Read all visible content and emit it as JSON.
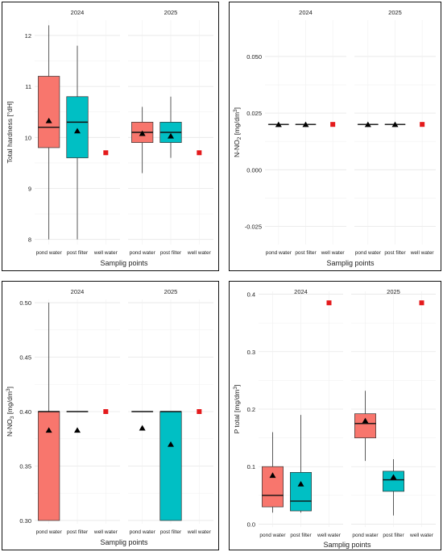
{
  "colors": {
    "pond": "#F8766D",
    "post": "#00BFC4",
    "well": "#E41A1C",
    "grid": "#ebebeb"
  },
  "chart_data": [
    {
      "type": "box",
      "panel": "top-left",
      "ylabel": "Total hardness [°dH]",
      "xlabel": "Samplig points",
      "ylim": [
        7.9,
        12.3
      ],
      "yticks": [
        8,
        9,
        10,
        11,
        12
      ],
      "facets": [
        {
          "label": "2024",
          "groups": [
            {
              "name": "pond water",
              "color": "pond",
              "type": "box",
              "min": 8.0,
              "q1": 9.8,
              "median": 10.2,
              "q3": 11.2,
              "max": 12.2,
              "mean": 10.33
            },
            {
              "name": "post filter",
              "color": "post",
              "type": "box",
              "min": 8.0,
              "q1": 9.6,
              "median": 10.3,
              "q3": 10.8,
              "max": 11.8,
              "mean": 10.13
            },
            {
              "name": "well water",
              "color": "well",
              "type": "point",
              "value": 9.7
            }
          ]
        },
        {
          "label": "2025",
          "groups": [
            {
              "name": "pond water",
              "color": "pond",
              "type": "box",
              "min": 9.3,
              "q1": 9.9,
              "median": 10.1,
              "q3": 10.3,
              "max": 10.6,
              "mean": 10.08
            },
            {
              "name": "post filter",
              "color": "post",
              "type": "box",
              "min": 9.6,
              "q1": 9.9,
              "median": 10.1,
              "q3": 10.3,
              "max": 10.8,
              "mean": 10.03
            },
            {
              "name": "well water",
              "color": "well",
              "type": "point",
              "value": 9.7
            }
          ]
        }
      ]
    },
    {
      "type": "box",
      "panel": "top-right",
      "ylabel_main": "N-NO",
      "ylabel_sub": "2",
      "ylabel_unit": "[mg/dm",
      "ylabel_sup": "3",
      "ylabel_end": "]",
      "xlabel": "Samplig points",
      "ylim": [
        -0.033,
        0.066
      ],
      "yticks": [
        -0.025,
        0.0,
        0.025,
        0.05
      ],
      "yticklabels": [
        "-0.025",
        "0.000",
        "0.025",
        "0.050"
      ],
      "facets": [
        {
          "label": "2024",
          "groups": [
            {
              "name": "pond water",
              "color": "pond",
              "type": "box",
              "min": 0.02,
              "q1": 0.02,
              "median": 0.02,
              "q3": 0.02,
              "max": 0.02,
              "mean": 0.02
            },
            {
              "name": "post filter",
              "color": "post",
              "type": "box",
              "min": 0.02,
              "q1": 0.02,
              "median": 0.02,
              "q3": 0.02,
              "max": 0.02,
              "mean": 0.02
            },
            {
              "name": "well water",
              "color": "well",
              "type": "point",
              "value": 0.02
            }
          ]
        },
        {
          "label": "2025",
          "groups": [
            {
              "name": "pond water",
              "color": "pond",
              "type": "box",
              "min": 0.02,
              "q1": 0.02,
              "median": 0.02,
              "q3": 0.02,
              "max": 0.02,
              "mean": 0.02
            },
            {
              "name": "post filter",
              "color": "post",
              "type": "box",
              "min": 0.02,
              "q1": 0.02,
              "median": 0.02,
              "q3": 0.02,
              "max": 0.02,
              "mean": 0.02
            },
            {
              "name": "well water",
              "color": "well",
              "type": "point",
              "value": 0.02
            }
          ]
        }
      ]
    },
    {
      "type": "box",
      "panel": "bottom-left",
      "ylabel_main": "N-NO",
      "ylabel_sub": "3",
      "ylabel_unit": "[mg/dm",
      "ylabel_sup": "3",
      "ylabel_end": "]",
      "xlabel": "Samplig points",
      "ylim": [
        0.297,
        0.503
      ],
      "yticks": [
        0.3,
        0.35,
        0.4,
        0.45,
        0.5
      ],
      "yticklabels": [
        "0.30",
        "0.35",
        "0.40",
        "0.45",
        "0.50"
      ],
      "facets": [
        {
          "label": "2024",
          "groups": [
            {
              "name": "pond water",
              "color": "pond",
              "type": "box",
              "min": 0.3,
              "q1": 0.3,
              "median": 0.4,
              "q3": 0.4,
              "max": 0.5,
              "mean": 0.383
            },
            {
              "name": "post filter",
              "color": "post",
              "type": "box",
              "min": 0.4,
              "q1": 0.4,
              "median": 0.4,
              "q3": 0.4,
              "max": 0.4,
              "mean": 0.383
            },
            {
              "name": "well water",
              "color": "well",
              "type": "point",
              "value": 0.4
            }
          ]
        },
        {
          "label": "2025",
          "groups": [
            {
              "name": "pond water",
              "color": "pond",
              "type": "box",
              "min": 0.4,
              "q1": 0.4,
              "median": 0.4,
              "q3": 0.4,
              "max": 0.4,
              "mean": 0.385
            },
            {
              "name": "post filter",
              "color": "post",
              "type": "box",
              "min": 0.3,
              "q1": 0.3,
              "median": 0.4,
              "q3": 0.4,
              "max": 0.4,
              "mean": 0.37
            },
            {
              "name": "well water",
              "color": "well",
              "type": "point",
              "value": 0.4
            }
          ]
        }
      ]
    },
    {
      "type": "box",
      "panel": "bottom-right",
      "ylabel_main": "P total",
      "ylabel_unit": "[mg/dm",
      "ylabel_sup": "3",
      "ylabel_end": "]",
      "xlabel": "Samplig points",
      "ylim": [
        -0.005,
        0.405
      ],
      "yticks": [
        0.0,
        0.1,
        0.2,
        0.3,
        0.4
      ],
      "yticklabels": [
        "0.0",
        "0.1",
        "0.2",
        "0.3",
        "0.4"
      ],
      "facets": [
        {
          "label": "2024",
          "groups": [
            {
              "name": "pond water",
              "color": "pond",
              "type": "box",
              "min": 0.02,
              "q1": 0.03,
              "median": 0.05,
              "q3": 0.1,
              "max": 0.16,
              "mean": 0.085
            },
            {
              "name": "post filter",
              "color": "post",
              "type": "box",
              "min": 0.02,
              "q1": 0.023,
              "median": 0.04,
              "q3": 0.09,
              "max": 0.19,
              "mean": 0.07
            },
            {
              "name": "well water",
              "color": "well",
              "type": "point",
              "value": 0.385
            }
          ]
        },
        {
          "label": "2025",
          "groups": [
            {
              "name": "pond water",
              "color": "pond",
              "type": "box",
              "min": 0.11,
              "q1": 0.15,
              "median": 0.175,
              "q3": 0.192,
              "max": 0.232,
              "mean": 0.18
            },
            {
              "name": "post filter",
              "color": "post",
              "type": "box",
              "min": 0.015,
              "q1": 0.057,
              "median": 0.077,
              "q3": 0.092,
              "max": 0.113,
              "mean": 0.082
            },
            {
              "name": "well water",
              "color": "well",
              "type": "point",
              "value": 0.385
            }
          ]
        }
      ]
    }
  ]
}
